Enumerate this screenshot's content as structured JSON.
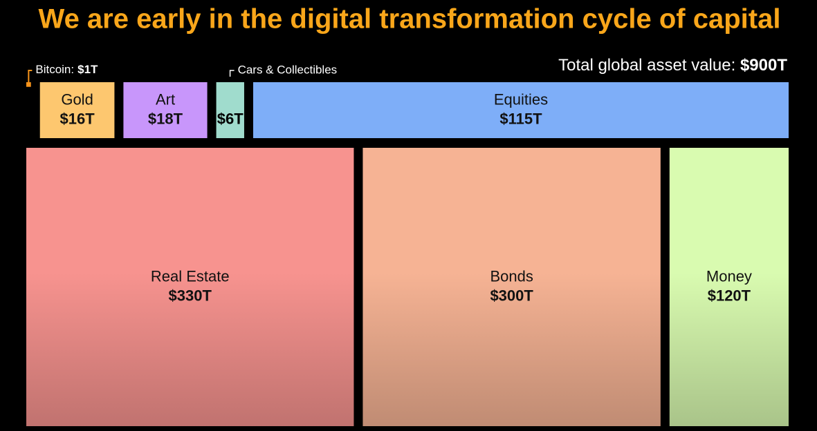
{
  "chart_data": {
    "type": "treemap",
    "title": "We are early in the digital transformation cycle of capital",
    "total_label": "Total global asset value:",
    "total_value": 900,
    "total_value_label": "$900T",
    "groups": [
      {
        "categories": [
          "Bitcoin:",
          "Gold",
          "Art",
          "Cars & Collectibles",
          "Equities"
        ],
        "values": [
          1,
          16,
          18,
          6,
          115
        ],
        "value_labels": [
          "$1T",
          "$16T",
          "$18T",
          "$6T",
          "$115T"
        ],
        "colors": [
          "#f7931a",
          "#fdc76f",
          "#c896fb",
          "#a0dccd",
          "#7eaef8"
        ]
      },
      {
        "categories": [
          "Real Estate",
          "Bonds",
          "Money"
        ],
        "values": [
          330,
          300,
          120
        ],
        "value_labels": [
          "$330T",
          "$300T",
          "$120T"
        ],
        "colors": [
          "#f7938f",
          "#f6b394",
          "#d9fbb0"
        ]
      }
    ]
  }
}
